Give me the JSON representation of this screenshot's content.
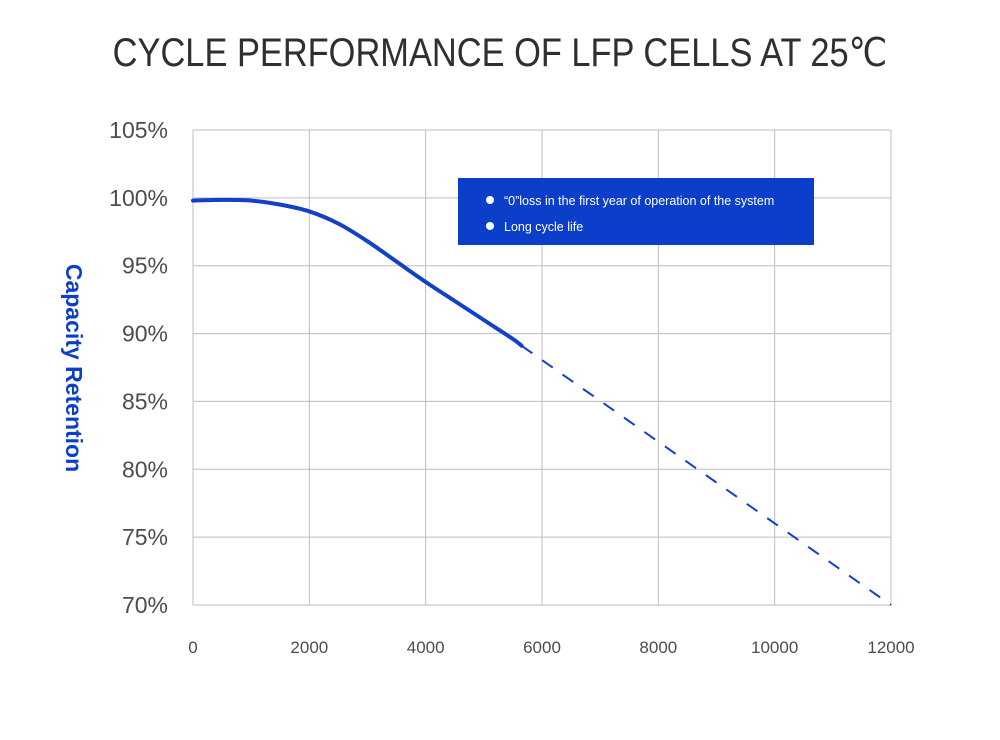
{
  "chart_data": {
    "type": "line",
    "title": "CYCLE PERFORMANCE OF LFP CELLS AT 25℃",
    "xlabel": "",
    "ylabel": "Capacity Retention",
    "xlim": [
      0,
      12000
    ],
    "ylim": [
      70,
      105
    ],
    "x_ticks": [
      "0",
      "2000",
      "4000",
      "6000",
      "8000",
      "10000",
      "12000"
    ],
    "y_ticks": [
      "70%",
      "75%",
      "80%",
      "85%",
      "90%",
      "95%",
      "100%",
      "105%"
    ],
    "grid": true,
    "series": [
      {
        "style": "solid",
        "x": [
          0,
          500,
          1000,
          1500,
          2000,
          2500,
          3000,
          3500,
          4000,
          4500,
          5000,
          5500,
          5650
        ],
        "values": [
          99.8,
          99.85,
          99.8,
          99.5,
          99.0,
          98.1,
          96.8,
          95.3,
          93.8,
          92.4,
          91.0,
          89.6,
          89.1
        ]
      },
      {
        "style": "dashed",
        "x": [
          5650,
          12000
        ],
        "values": [
          89.1,
          70.0
        ]
      }
    ],
    "annotations": [
      "“0”loss in the first year of operation of the system",
      "Long cycle life"
    ],
    "legend_position": "top-right",
    "colors": {
      "line": "#1240c8",
      "annotation_box": "#0b3ec9",
      "grid": "#bdbdbd",
      "ylabel": "#0b3ec9",
      "tick_text": "#4d4d4d",
      "title_text": "#2f2f2f"
    }
  }
}
